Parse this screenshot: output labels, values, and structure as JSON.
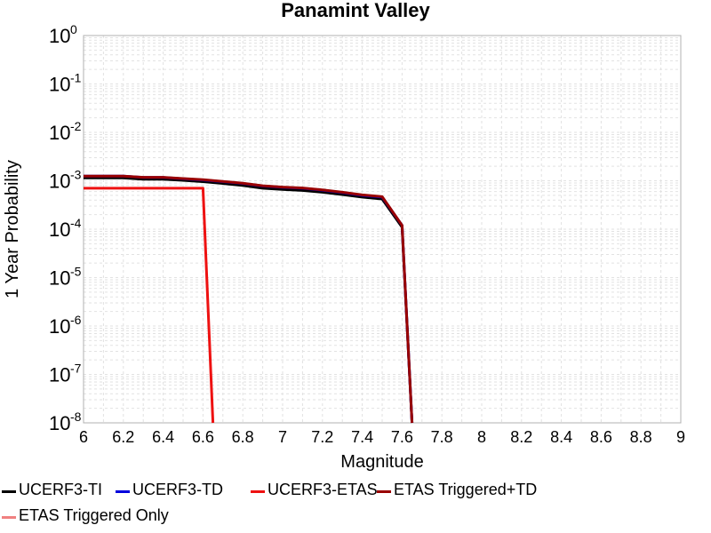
{
  "chart_data": {
    "type": "line",
    "title": "Panamint Valley",
    "xlabel": "Magnitude",
    "ylabel": "1 Year Probability",
    "xlim": [
      6,
      9
    ],
    "ylim": [
      1e-08,
      1
    ],
    "yscale": "log",
    "grid": true,
    "x_ticks": [
      "6",
      "6.2",
      "6.4",
      "6.6",
      "6.8",
      "7",
      "7.2",
      "7.4",
      "7.6",
      "7.8",
      "8",
      "8.2",
      "8.4",
      "8.6",
      "8.8",
      "9"
    ],
    "y_ticks": [
      {
        "base": "10",
        "exp": "0"
      },
      {
        "base": "10",
        "exp": "-1"
      },
      {
        "base": "10",
        "exp": "-2"
      },
      {
        "base": "10",
        "exp": "-3"
      },
      {
        "base": "10",
        "exp": "-4"
      },
      {
        "base": "10",
        "exp": "-5"
      },
      {
        "base": "10",
        "exp": "-6"
      },
      {
        "base": "10",
        "exp": "-7"
      },
      {
        "base": "10",
        "exp": "-8"
      }
    ],
    "legend_position": "bottom",
    "series": [
      {
        "name": "UCERF3-TI",
        "color": "#000000",
        "x": [
          6.0,
          6.1,
          6.2,
          6.3,
          6.4,
          6.5,
          6.6,
          6.7,
          6.8,
          6.9,
          7.0,
          7.1,
          7.2,
          7.3,
          7.4,
          7.5,
          7.6,
          7.65
        ],
        "y": [
          0.00115,
          0.00115,
          0.00115,
          0.00108,
          0.00108,
          0.00102,
          0.00096,
          0.00088,
          0.0008,
          0.0007,
          0.00066,
          0.00063,
          0.00058,
          0.00052,
          0.00046,
          0.00042,
          0.00011,
          1e-08
        ]
      },
      {
        "name": "UCERF3-TD",
        "color": "#0000dd",
        "x": [
          6.0,
          6.1,
          6.2,
          6.3,
          6.4,
          6.5,
          6.6,
          6.7,
          6.8,
          6.9,
          7.0,
          7.1,
          7.2,
          7.3,
          7.4,
          7.5,
          7.6,
          7.65
        ],
        "y": [
          0.00125,
          0.00125,
          0.00125,
          0.00117,
          0.00117,
          0.0011,
          0.00104,
          0.00096,
          0.00088,
          0.00078,
          0.00073,
          0.0007,
          0.00064,
          0.00057,
          0.0005,
          0.00046,
          0.00012,
          1e-08
        ]
      },
      {
        "name": "UCERF3-ETAS",
        "color": "#ee1111",
        "x": [
          6.0,
          6.1,
          6.2,
          6.3,
          6.4,
          6.5,
          6.6,
          6.65
        ],
        "y": [
          0.0007,
          0.0007,
          0.0007,
          0.0007,
          0.0007,
          0.0007,
          0.0007,
          1e-08
        ]
      },
      {
        "name": "ETAS Triggered+TD",
        "color": "#990000",
        "x": [
          6.0,
          6.1,
          6.2,
          6.3,
          6.4,
          6.5,
          6.6,
          6.7,
          6.8,
          6.9,
          7.0,
          7.1,
          7.2,
          7.3,
          7.4,
          7.5,
          7.6,
          7.65
        ],
        "y": [
          0.00125,
          0.00125,
          0.00125,
          0.00118,
          0.00118,
          0.00111,
          0.00105,
          0.00097,
          0.00089,
          0.00079,
          0.00074,
          0.00071,
          0.00065,
          0.00058,
          0.00051,
          0.00047,
          0.00012,
          1e-08
        ]
      },
      {
        "name": "ETAS Triggered Only",
        "color": "#f08080",
        "x": [],
        "y": []
      }
    ]
  }
}
